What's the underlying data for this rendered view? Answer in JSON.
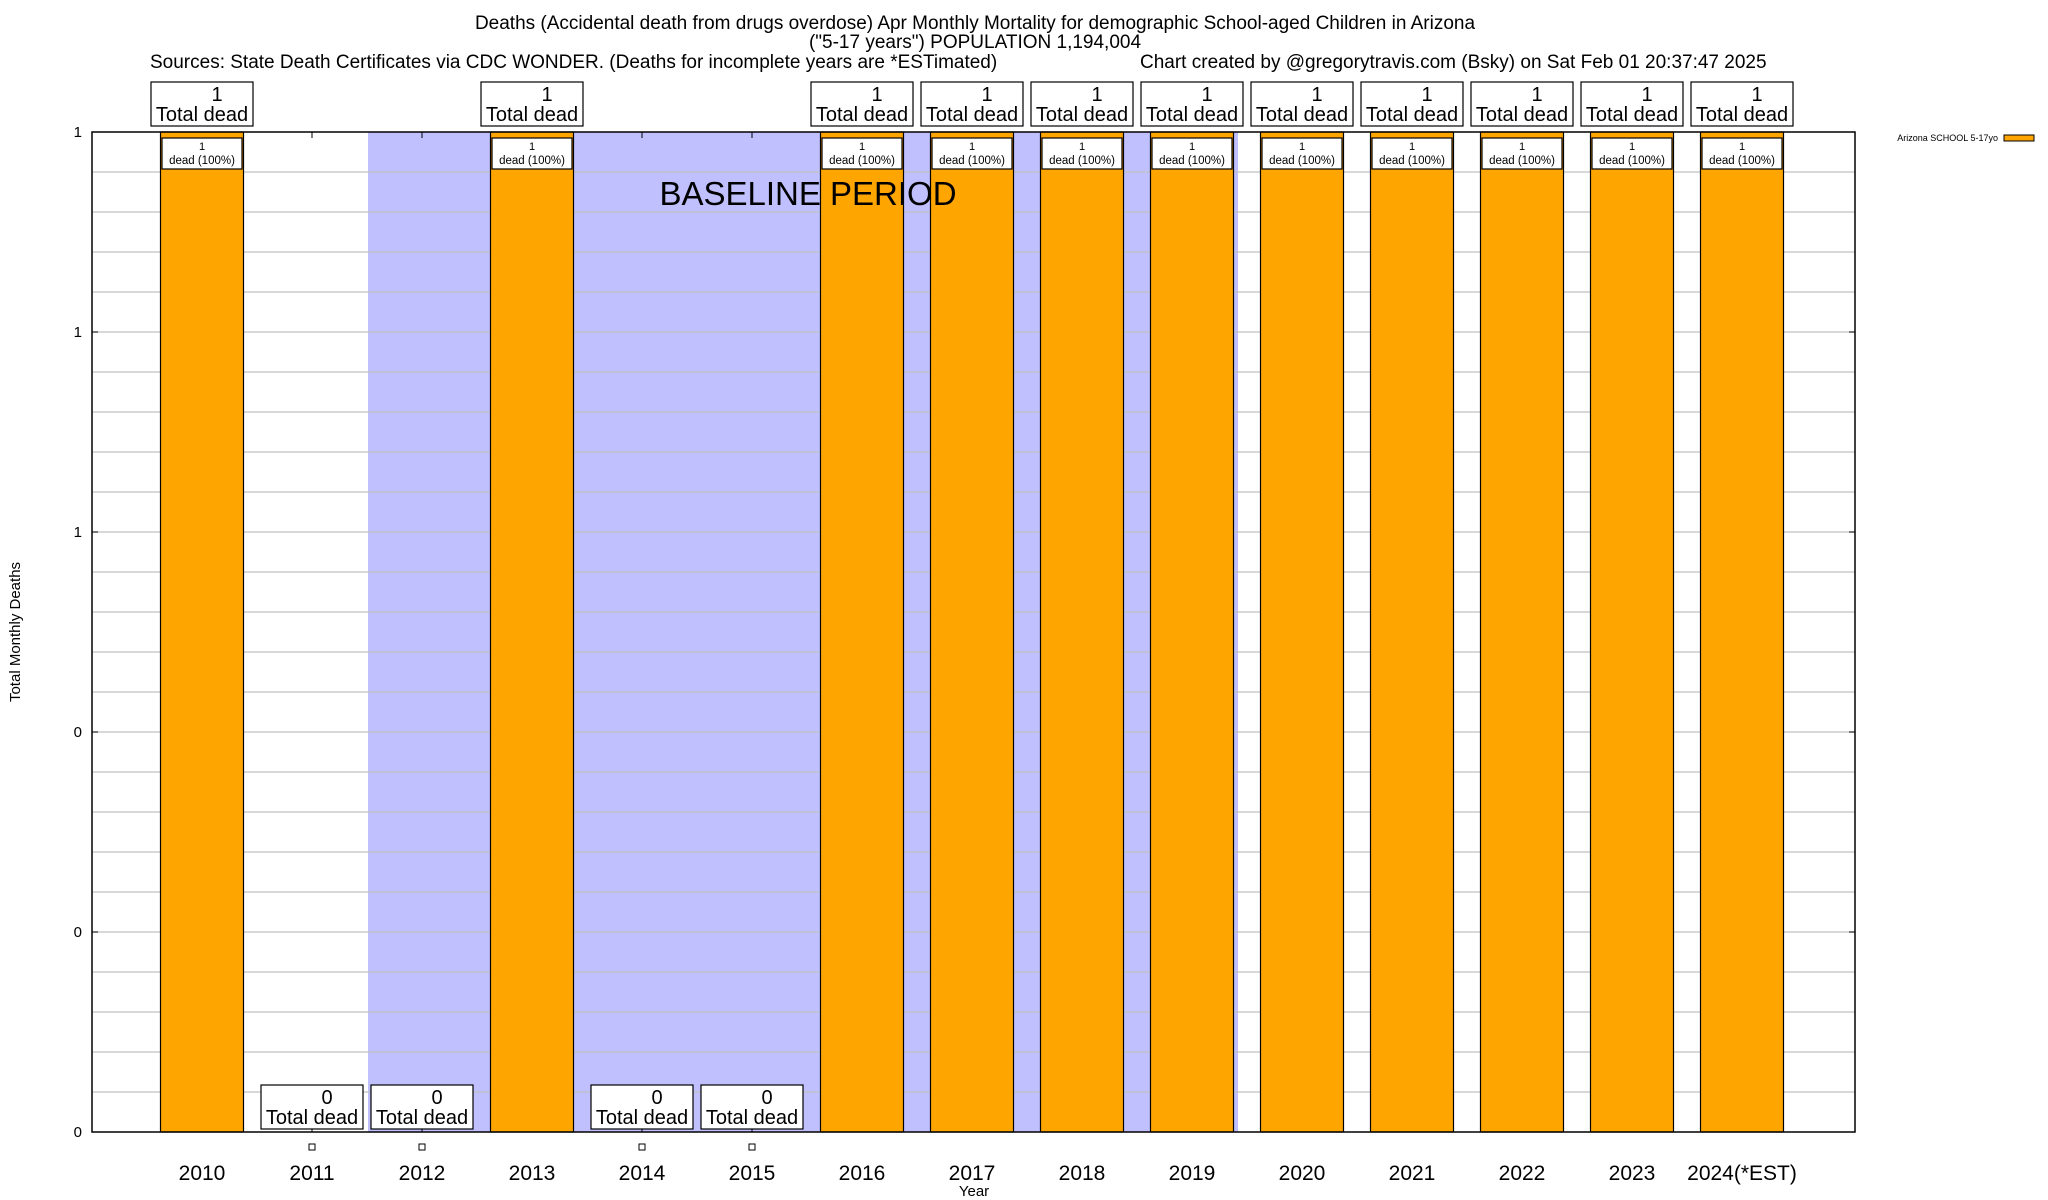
{
  "header": {
    "title_line1": "Deaths (Accidental death from drugs overdose) Apr Monthly Mortality for demographic School-aged Children in Arizona",
    "title_line2": "(\"5-17 years\") POPULATION 1,194,004",
    "sources": "Sources: State Death Certificates via CDC WONDER. (Deaths for incomplete years are *ESTimated)",
    "credit": "Chart created by @gregorytravis.com (Bsky) on Sat Feb 01 20:37:47 2025"
  },
  "colors": {
    "bar": "#ffa500",
    "baseline_band": "#c0c0ff",
    "grid": "#c0c0c0"
  },
  "chart_data": {
    "type": "bar",
    "title": "Deaths (Accidental death from drugs overdose) Apr Monthly Mortality for demographic School-aged Children in Arizona",
    "xlabel": "Year",
    "ylabel": "Total Monthly Deaths",
    "ylim": [
      0,
      1
    ],
    "yticks": [
      0,
      0.2,
      0.4,
      0.6,
      0.8,
      1.0
    ],
    "ytick_labels": [
      "0",
      "0",
      "0",
      "1",
      "1",
      "1"
    ],
    "grid": true,
    "legend": {
      "position": "top-right",
      "entries": [
        "Arizona SCHOOL 5-17yo"
      ]
    },
    "categories": [
      "2010",
      "2011",
      "2012",
      "2013",
      "2014",
      "2015",
      "2016",
      "2017",
      "2018",
      "2019",
      "2020",
      "2021",
      "2022",
      "2023",
      "2024(*EST)"
    ],
    "series": [
      {
        "name": "Arizona SCHOOL 5-17yo",
        "values": [
          1,
          0,
          0,
          1,
          0,
          0,
          1,
          1,
          1,
          1,
          1,
          1,
          1,
          1,
          1
        ]
      }
    ],
    "total_labels": [
      "1",
      "0",
      "0",
      "1",
      "0",
      "0",
      "1",
      "1",
      "1",
      "1",
      "1",
      "1",
      "1",
      "1",
      "1"
    ],
    "total_label_suffix": "Total dead",
    "inner_labels": [
      "1",
      "",
      "",
      "1",
      "",
      "",
      "1",
      "1",
      "1",
      "1",
      "1",
      "1",
      "1",
      "1",
      "1"
    ],
    "inner_label_suffix": "dead (100%)",
    "annotation": "BASELINE PERIOD",
    "baseline_period": {
      "from": "2012",
      "to": "2019"
    }
  }
}
